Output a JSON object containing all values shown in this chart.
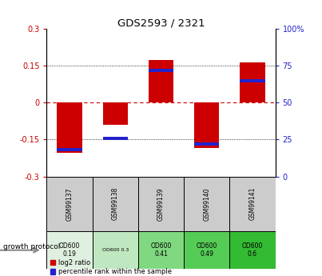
{
  "title": "GDS2593 / 2321",
  "samples": [
    "GSM99137",
    "GSM99138",
    "GSM99139",
    "GSM99140",
    "GSM99141"
  ],
  "log2_ratio": [
    -0.205,
    -0.09,
    0.175,
    -0.185,
    0.165
  ],
  "percentile_rank_pct": [
    18,
    26,
    72,
    22,
    65
  ],
  "ylim": [
    -0.3,
    0.3
  ],
  "yticks_left": [
    -0.3,
    -0.15,
    0.0,
    0.15,
    0.3
  ],
  "yticks_right": [
    0,
    25,
    50,
    75,
    100
  ],
  "ytick_labels_left": [
    "-0.3",
    "-0.15",
    "0",
    "0.15",
    "0.3"
  ],
  "ytick_labels_right": [
    "0",
    "25",
    "50",
    "75",
    "100%"
  ],
  "red_color": "#cc0000",
  "blue_color": "#2222cc",
  "zero_line_color": "#cc0000",
  "protocol_labels": [
    "OD600\n0.19",
    "OD600 0.3",
    "OD600\n0.41",
    "OD600\n0.49",
    "OD600\n0.6"
  ],
  "protocol_colors": [
    "#e0f0e0",
    "#c0e8c0",
    "#80d880",
    "#55cc55",
    "#33bb33"
  ],
  "growth_protocol_text": "growth protocol",
  "legend_red": "log2 ratio",
  "legend_blue": "percentile rank within the sample"
}
